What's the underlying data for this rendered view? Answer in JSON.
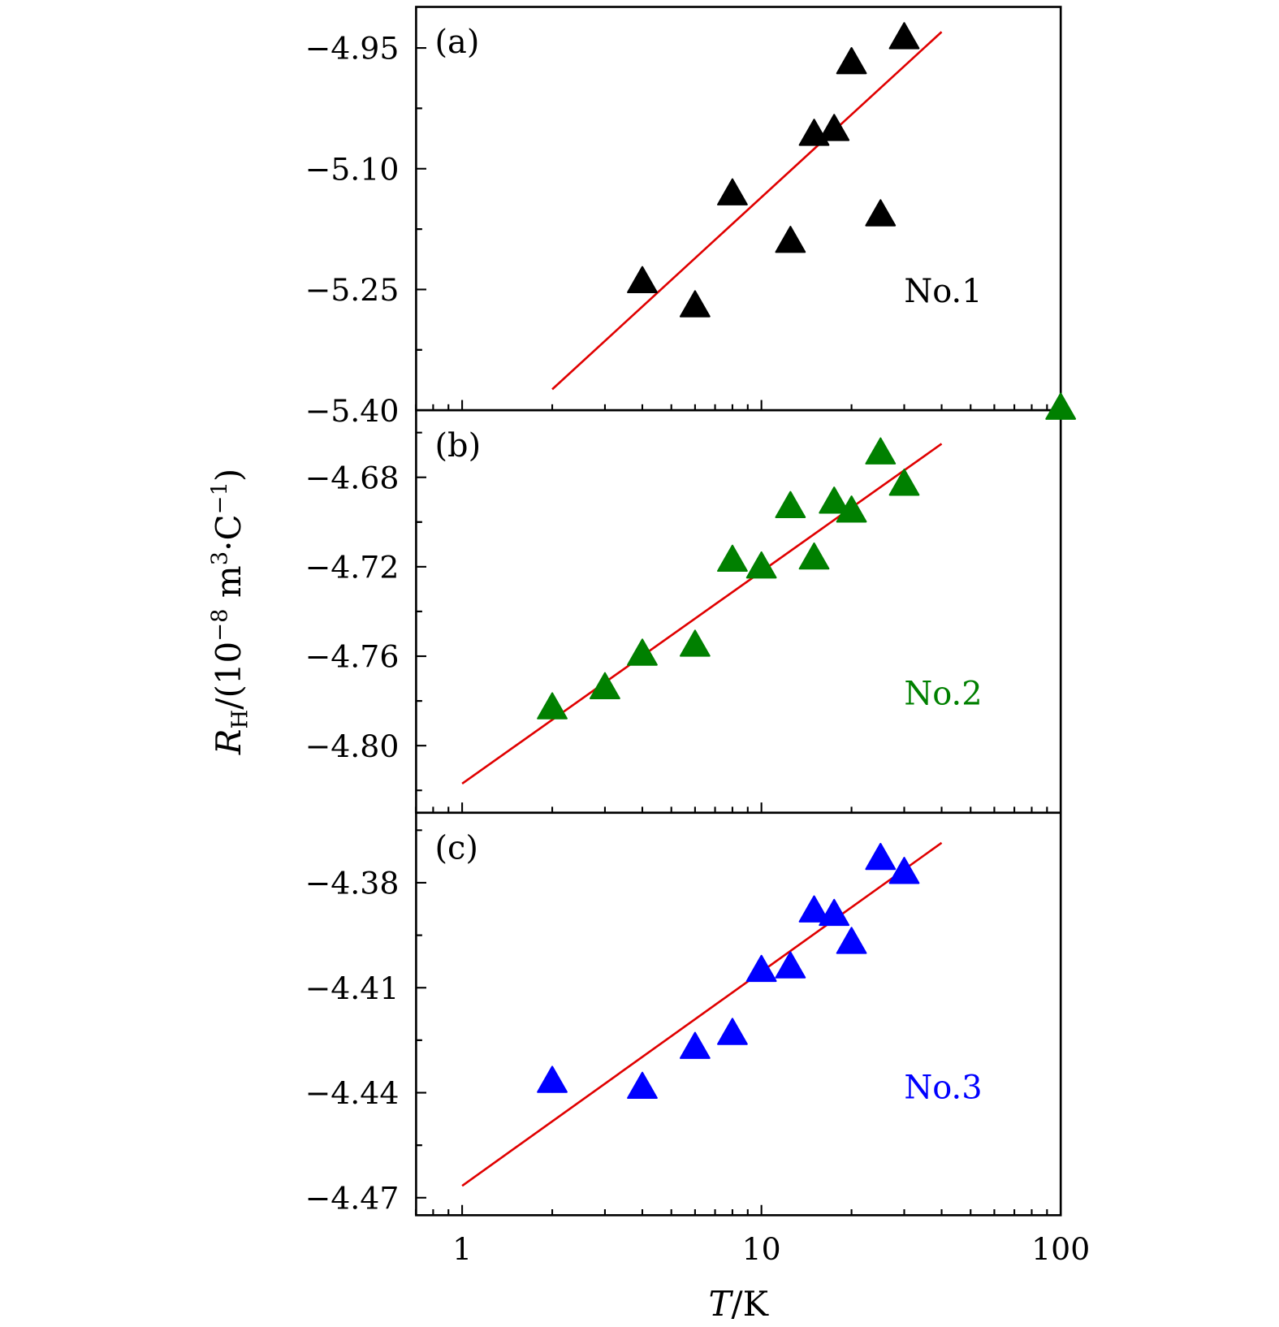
{
  "chart_data": {
    "type": "scatter",
    "x_scale": "log",
    "xlim": [
      0.7,
      100
    ],
    "x_ticks": [
      "1",
      "10",
      "100"
    ],
    "xlabel": {
      "italic": "T",
      "rest": "/K"
    },
    "ylabel": {
      "base": "R",
      "sub": "H",
      "pre": "/(10",
      "sup1": "−8",
      "mid": " m",
      "sup2": "3",
      "dot": "·C",
      "sup3": "−1",
      "post": ")"
    },
    "grid": false,
    "fit_color": "#e00000",
    "panels": [
      {
        "label": "(a)",
        "name": "No.1",
        "color": "#000000",
        "ylim": [
          -5.4,
          -4.899
        ],
        "y_ticks": [
          "−4.95",
          "−5.10",
          "−5.25",
          "−5.40"
        ],
        "y_tick_values": [
          -4.95,
          -5.1,
          -5.25,
          -5.4
        ],
        "points": [
          {
            "x": 4,
            "y": -5.24
          },
          {
            "x": 6,
            "y": -5.27
          },
          {
            "x": 8,
            "y": -5.131
          },
          {
            "x": 12.5,
            "y": -5.19
          },
          {
            "x": 15,
            "y": -5.057
          },
          {
            "x": 17.5,
            "y": -5.051
          },
          {
            "x": 20,
            "y": -4.968
          },
          {
            "x": 25,
            "y": -5.157
          },
          {
            "x": 30,
            "y": -4.937
          }
        ],
        "fit": [
          {
            "x": 2,
            "y": -5.374
          },
          {
            "x": 40,
            "y": -4.93
          }
        ]
      },
      {
        "label": "(b)",
        "name": "No.2",
        "color": "#008000",
        "ylim": [
          -4.83,
          -4.65
        ],
        "y_ticks": [
          "−4.68",
          "−4.72",
          "−4.76",
          "−4.80"
        ],
        "y_tick_values": [
          -4.68,
          -4.72,
          -4.76,
          -4.8
        ],
        "points": [
          {
            "x": 2,
            "y": -4.783
          },
          {
            "x": 3,
            "y": -4.774
          },
          {
            "x": 4,
            "y": -4.759
          },
          {
            "x": 6,
            "y": -4.755
          },
          {
            "x": 8,
            "y": -4.717
          },
          {
            "x": 10,
            "y": -4.72
          },
          {
            "x": 12.5,
            "y": -4.693
          },
          {
            "x": 15,
            "y": -4.716
          },
          {
            "x": 17.5,
            "y": -4.691
          },
          {
            "x": 20,
            "y": -4.695
          },
          {
            "x": 25,
            "y": -4.669
          },
          {
            "x": 30,
            "y": -4.683
          },
          {
            "x": 100,
            "y": -4.649
          }
        ],
        "fit": [
          {
            "x": 1,
            "y": -4.817
          },
          {
            "x": 40,
            "y": -4.665
          }
        ]
      },
      {
        "label": "(c)",
        "name": "No.3",
        "color": "#0000ff",
        "ylim": [
          -4.475,
          -4.36
        ],
        "y_ticks": [
          "−4.38",
          "−4.41",
          "−4.44",
          "−4.47"
        ],
        "y_tick_values": [
          -4.38,
          -4.41,
          -4.44,
          -4.47
        ],
        "points": [
          {
            "x": 2,
            "y": -4.4367
          },
          {
            "x": 4,
            "y": -4.4384
          },
          {
            "x": 6,
            "y": -4.427
          },
          {
            "x": 8,
            "y": -4.423
          },
          {
            "x": 10,
            "y": -4.405
          },
          {
            "x": 12.5,
            "y": -4.404
          },
          {
            "x": 15,
            "y": -4.388
          },
          {
            "x": 17.5,
            "y": -4.389
          },
          {
            "x": 20,
            "y": -4.397
          },
          {
            "x": 25,
            "y": -4.373
          },
          {
            "x": 30,
            "y": -4.377
          }
        ],
        "fit": [
          {
            "x": 1,
            "y": -4.4666
          },
          {
            "x": 40,
            "y": -4.3686
          }
        ]
      }
    ]
  }
}
